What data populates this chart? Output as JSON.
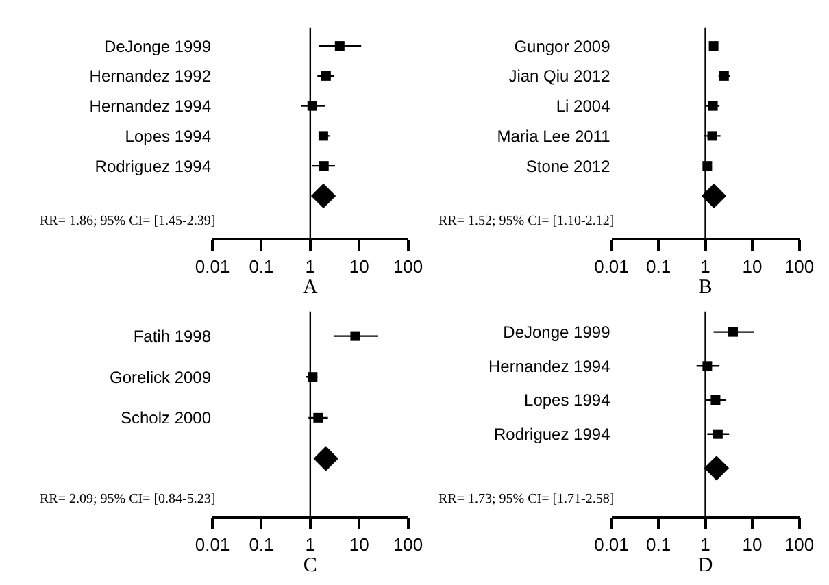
{
  "chart_data": [
    {
      "type": "scatter",
      "orientation": "horizontal",
      "xlabel": "A",
      "categories": [
        "DeJonge 1999",
        "Hernandez 1992",
        "Hernandez 1994",
        "Lopes 1994",
        "Rodriguez 1994",
        null
      ],
      "log": "x",
      "xlim": [
        0.01,
        100
      ],
      "xticks": [
        0.01,
        0.1,
        1,
        10,
        100
      ],
      "ref_lines": [
        {
          "axis": "x",
          "value": 1,
          "color": "#000000"
        }
      ],
      "annotations": [
        "RR= 1.86; 95% CI= [1.45-2.39]"
      ],
      "series": [
        {
          "color": "#000000",
          "marker": "square",
          "values": [
            4.0,
            2.1,
            1.1,
            1.85,
            1.9,
            null
          ],
          "errors": [
            [
              1.5,
              11
            ],
            [
              1.4,
              3.1
            ],
            [
              0.65,
              2.0
            ],
            [
              1.5,
              2.5
            ],
            [
              1.1,
              3.2
            ],
            null
          ]
        },
        {
          "color": "#000000",
          "marker": "diamond",
          "values": [
            null,
            null,
            null,
            null,
            null,
            1.86
          ]
        }
      ]
    },
    {
      "type": "scatter",
      "orientation": "horizontal",
      "xlabel": "B",
      "categories": [
        "Gungor 2009",
        "Jian Qiu 2012",
        "Li 2004",
        "Maria Lee 2011",
        "Stone 2012",
        null
      ],
      "log": "x",
      "xlim": [
        0.01,
        100
      ],
      "xticks": [
        0.01,
        0.1,
        1,
        10,
        100
      ],
      "ref_lines": [
        {
          "axis": "x",
          "value": 1,
          "color": "#000000"
        }
      ],
      "annotations": [
        "RR= 1.52; 95% CI= [1.10-2.12]"
      ],
      "series": [
        {
          "color": "#000000",
          "marker": "square",
          "values": [
            1.5,
            2.5,
            1.45,
            1.4,
            1.1,
            null
          ],
          "errors": [
            [
              1.25,
              1.8
            ],
            [
              1.9,
              3.4
            ],
            [
              1.05,
              2.0
            ],
            [
              0.95,
              2.1
            ],
            null,
            null
          ]
        },
        {
          "color": "#000000",
          "marker": "diamond",
          "values": [
            null,
            null,
            null,
            null,
            null,
            1.52
          ]
        }
      ]
    },
    {
      "type": "scatter",
      "orientation": "horizontal",
      "xlabel": "C",
      "categories": [
        "Fatih 1998",
        "Gorelick 2009",
        "Scholz 2000",
        null
      ],
      "log": "x",
      "xlim": [
        0.01,
        100
      ],
      "xticks": [
        0.01,
        0.1,
        1,
        10,
        100
      ],
      "ref_lines": [
        {
          "axis": "x",
          "value": 1,
          "color": "#000000"
        }
      ],
      "annotations": [
        "RR= 2.09; 95% CI= [0.84-5.23]"
      ],
      "series": [
        {
          "color": "#000000",
          "marker": "square",
          "values": [
            8.3,
            1.12,
            1.45,
            null
          ],
          "errors": [
            [
              3.0,
              24
            ],
            [
              0.83,
              1.4
            ],
            [
              0.92,
              2.3
            ],
            null
          ]
        },
        {
          "color": "#000000",
          "marker": "diamond",
          "values": [
            null,
            null,
            null,
            2.09
          ]
        }
      ]
    },
    {
      "type": "scatter",
      "orientation": "horizontal",
      "xlabel": "D",
      "categories": [
        "DeJonge 1999",
        "Hernandez 1994",
        "Lopes 1994",
        "Rodriguez 1994",
        null
      ],
      "log": "x",
      "xlim": [
        0.01,
        100
      ],
      "xticks": [
        0.01,
        0.1,
        1,
        10,
        100
      ],
      "ref_lines": [
        {
          "axis": "x",
          "value": 1,
          "color": "#000000"
        }
      ],
      "annotations": [
        "RR= 1.73; 95% CI= [1.71-2.58]"
      ],
      "series": [
        {
          "color": "#000000",
          "marker": "square",
          "values": [
            3.9,
            1.1,
            1.65,
            1.85,
            null
          ],
          "errors": [
            [
              1.5,
              10.7
            ],
            [
              0.65,
              2.0
            ],
            [
              1.0,
              2.7
            ],
            [
              1.1,
              3.2
            ],
            null
          ]
        },
        {
          "color": "#000000",
          "marker": "diamond",
          "values": [
            null,
            null,
            null,
            null,
            1.73
          ]
        }
      ]
    }
  ]
}
